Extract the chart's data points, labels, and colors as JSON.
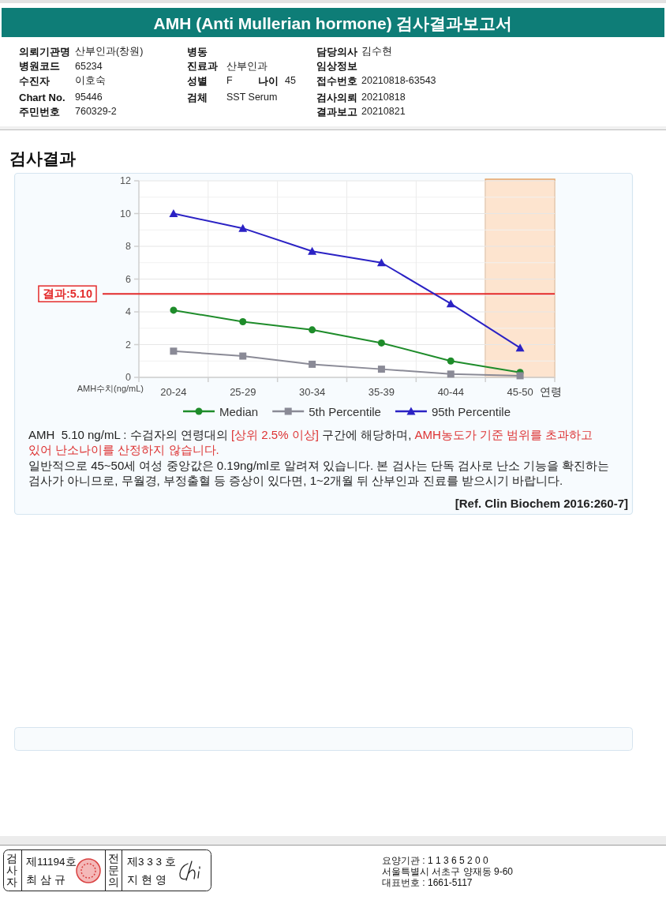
{
  "chart_data": [
    {
      "type": "other",
      "title": "AMH (Anti Mullerian hormone) 검사결과보고서",
      "annotations": [
        "의뢰기관명",
        "산부인과(창원)",
        "병동",
        "담당의사",
        "김수현",
        "병원코드",
        "65234",
        "진료과",
        "산부인과",
        "임상정보",
        "수진자",
        "이호숙",
        "성별",
        "F",
        "나이",
        "45",
        "접수번호",
        "20210818-63543",
        "Chart No.",
        "95446",
        "검체",
        "SST Serum",
        "검사의뢰",
        "20210818",
        "주민번호",
        "760329-2",
        "결과보고",
        "20210821"
      ]
    },
    {
      "type": "line",
      "title": "검사결과",
      "categories": [
        "20-24",
        "25-29",
        "30-34",
        "35-39",
        "40-44",
        "45-50"
      ],
      "xlabel": "연령",
      "ylabel": "AMH수치(ng/mL)",
      "series": [
        {
          "name": "Median",
          "color": "#1e8c2a",
          "marker": "circle",
          "values": [
            4.1,
            3.4,
            2.9,
            2.1,
            1.0,
            0.3
          ]
        },
        {
          "name": "5th Percentile",
          "color": "#8a8a96",
          "marker": "square",
          "values": [
            1.6,
            1.3,
            0.8,
            0.5,
            0.2,
            0.1
          ]
        },
        {
          "name": "95th Percentile",
          "color": "#2b22c4",
          "marker": "triangle",
          "values": [
            10.0,
            9.1,
            7.7,
            7.0,
            4.5,
            1.8
          ]
        }
      ],
      "ylim": [
        0,
        12
      ],
      "yticks": [
        0,
        {
          "value": 1,
          "label": null
        },
        2,
        {
          "value": 3,
          "label": null
        },
        4,
        {
          "value": 5,
          "label": null
        },
        6,
        {
          "value": 7,
          "label": null
        },
        8,
        {
          "value": 9,
          "label": null
        },
        10,
        {
          "value": 11,
          "label": null
        },
        12
      ],
      "grid": true,
      "legend": "bottom",
      "ref_lines": [
        {
          "axis": "y",
          "value": 5.1,
          "label": "결과:5.10",
          "color": "#e32b2b"
        }
      ],
      "bands": [
        {
          "axis": "x",
          "from": "45-50",
          "to": "45-50",
          "color": "#fde4cf"
        }
      ],
      "annotations": [
        "AMH  5.10 ng/mL : 수검자의 연령대의 ",
        "[상위 2.5% 이상]",
        " 구간에 해당하며, ",
        "AMH농도가 기준 범위를 초과하고",
        "있어 난소나이를 산정하지 않습니다.",
        "일반적으로 45~50세 여성 중앙값은 0.19ng/ml로 알려져 있습니다. 본 검사는 단독 검사로 난소 기능을 확진하는",
        "검사가 아니므로, 무월경, 부정출혈 등 증상이 있다면, 1~2개월 뒤 산부인과 진료를 받으시기 바랍니다.",
        "[Ref. Clin Biochem 2016:260-7]"
      ]
    },
    {
      "type": "other",
      "annotations": [
        "검사자",
        "제11194호",
        "최 삼 규",
        "전문의",
        "제3 3 3 호",
        "지 현 영",
        "요양기관 : 1 1 3 6 5 2 0 0",
        "서울특별시 서초구 양재동 9-60",
        "대표번호 : 1661-5117"
      ]
    }
  ]
}
